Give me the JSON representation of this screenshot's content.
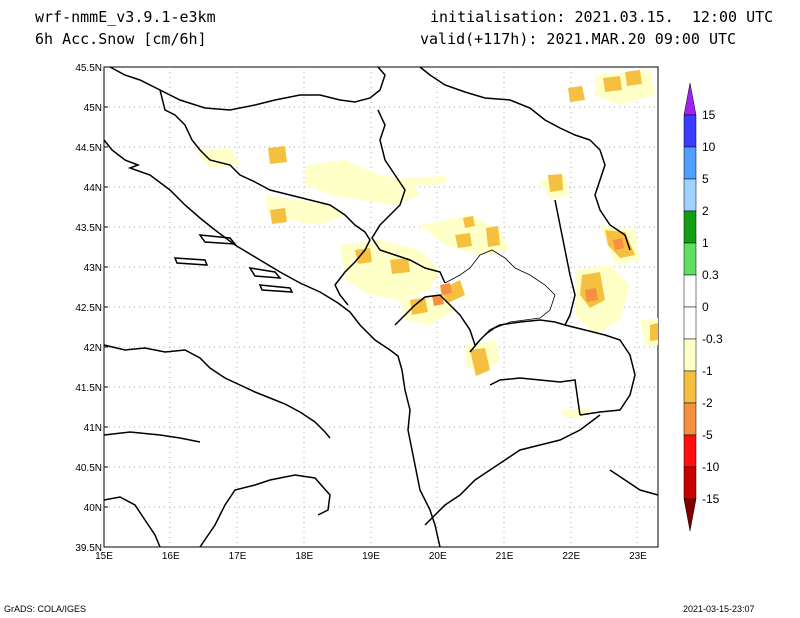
{
  "header": {
    "model": "wrf-nmmE_v3.9.1-e3km",
    "field": "6h Acc.Snow [cm/6h]",
    "init": "initialisation: 2021.03.15.  12:00 UTC",
    "valid": "valid(+117h): 2021.MAR.20 09:00 UTC"
  },
  "axes": {
    "lon": [
      "15E",
      "16E",
      "17E",
      "18E",
      "19E",
      "20E",
      "21E",
      "22E",
      "23E"
    ],
    "lat": [
      "39.5N",
      "40N",
      "40.5N",
      "41N",
      "41.5N",
      "42N",
      "42.5N",
      "43N",
      "43.5N",
      "44N",
      "44.5N",
      "45N",
      "45.5N"
    ],
    "lon_range": [
      15,
      23.3
    ],
    "lat_range": [
      39.5,
      45.5
    ]
  },
  "colorbar": {
    "labels": [
      "15",
      "10",
      "5",
      "2",
      "1",
      "0.3",
      "0",
      "-0.3",
      "-1",
      "-2",
      "-5",
      "-10",
      "-15"
    ],
    "colors": [
      "#a020f0",
      "#3c3cff",
      "#50a0ff",
      "#a0d2ff",
      "#12a012",
      "#60e060",
      "#ffffff",
      "#ffffff",
      "#ffffc8",
      "#f5c040",
      "#f59040",
      "#ff1010",
      "#c80000",
      "#a00000",
      "#800000"
    ]
  },
  "snow_colors": {
    "light": "#ffffc8",
    "medium": "#f5c040",
    "heavy": "#f59040"
  },
  "footer": {
    "left": "GrADS: COLA/IGES",
    "right": "2021-03-15-23:07"
  }
}
